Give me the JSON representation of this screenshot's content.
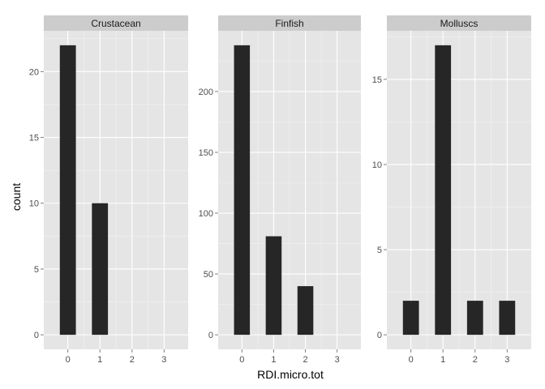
{
  "chart_data": {
    "type": "bar",
    "xlabel": "RDI.micro.tot",
    "ylabel": "count",
    "x_ticks": [
      0,
      1,
      2,
      3
    ],
    "xlim": [
      -0.75,
      3.75
    ],
    "grid": true,
    "colors": {
      "bar": "#262626",
      "panel_background": "#e5e5e5",
      "strip_background": "#cccccc",
      "grid_major": "#ffffff",
      "grid_minor": "#f2f2f2"
    },
    "facets": [
      {
        "name": "Crustacean",
        "x": [
          0,
          1
        ],
        "values": [
          22,
          10
        ],
        "ylim": [
          -1.1,
          23.1
        ],
        "y_ticks": [
          0,
          5,
          10,
          15,
          20
        ]
      },
      {
        "name": "Finfish",
        "x": [
          0,
          1,
          2
        ],
        "values": [
          238,
          81,
          40
        ],
        "ylim": [
          -11.9,
          249.9
        ],
        "y_ticks": [
          0,
          50,
          100,
          150,
          200
        ]
      },
      {
        "name": "Molluscs",
        "x": [
          0,
          1,
          2,
          3
        ],
        "values": [
          2,
          17,
          2,
          2
        ],
        "ylim": [
          -0.85,
          17.85
        ],
        "y_ticks": [
          0,
          5,
          10,
          15
        ]
      }
    ]
  }
}
